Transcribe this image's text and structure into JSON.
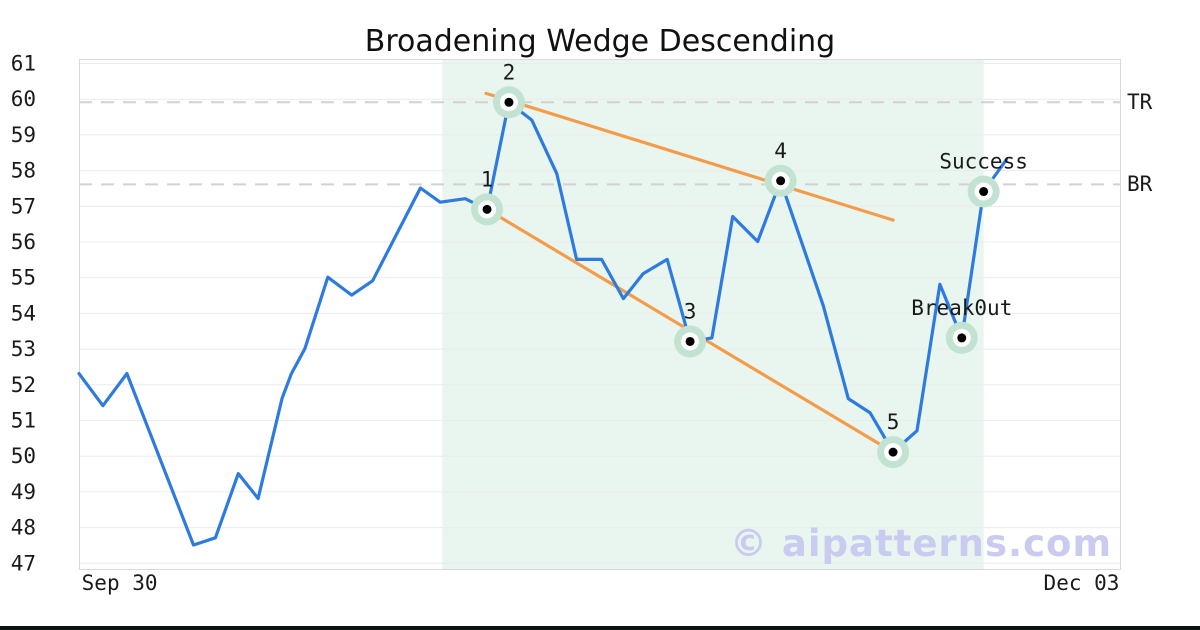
{
  "title": "Broadening Wedge Descending",
  "watermark": "© aipatterns.com",
  "colors": {
    "price_line": "#2e7bdf",
    "trendline": "#f59c4a",
    "pattern_shade": "#e9f5ef",
    "point_halo": "#c2e3d1",
    "point_dot": "#000000",
    "point_ring": "#ffffff",
    "dashed_level": "#d2d2d2",
    "gridline": "#ececec",
    "plot_border": "#d9d9d9",
    "tick_text": "#1a1a1a",
    "watermark_color": "#c9cbf1",
    "footer_bar": "#0c1412"
  },
  "chart_data": {
    "type": "line",
    "title": "Broadening Wedge Descending",
    "xlabel": "",
    "ylabel": "",
    "grid": "horizontal",
    "legend": "none",
    "ylim": [
      46.5,
      61.1
    ],
    "y_ticks": [
      61,
      60,
      59,
      58,
      57,
      56,
      55,
      54,
      53,
      52,
      51,
      50,
      49,
      48,
      47
    ],
    "x_ticks": [
      {
        "label": "Sep 30",
        "pos": 0.039
      },
      {
        "label": "Dec 03",
        "pos": 0.963
      }
    ],
    "levels": [
      {
        "label": "TR",
        "value": 59.9
      },
      {
        "label": "BR",
        "value": 57.6
      }
    ],
    "pattern_shade": {
      "from": 0.349,
      "to": 0.869
    },
    "series": [
      {
        "name": "price",
        "points": [
          [
            0.0,
            52.3
          ],
          [
            0.023,
            51.4
          ],
          [
            0.046,
            52.3
          ],
          [
            0.11,
            47.5
          ],
          [
            0.131,
            47.7
          ],
          [
            0.153,
            49.5
          ],
          [
            0.172,
            48.8
          ],
          [
            0.195,
            51.6
          ],
          [
            0.204,
            52.3
          ],
          [
            0.217,
            53.0
          ],
          [
            0.239,
            55.0
          ],
          [
            0.262,
            54.5
          ],
          [
            0.282,
            54.9
          ],
          [
            0.328,
            57.5
          ],
          [
            0.347,
            57.1
          ],
          [
            0.371,
            57.2
          ],
          [
            0.392,
            56.9
          ],
          [
            0.413,
            59.9
          ],
          [
            0.435,
            59.4
          ],
          [
            0.459,
            57.9
          ],
          [
            0.478,
            55.5
          ],
          [
            0.502,
            55.5
          ],
          [
            0.523,
            54.4
          ],
          [
            0.542,
            55.1
          ],
          [
            0.565,
            55.5
          ],
          [
            0.587,
            53.2
          ],
          [
            0.608,
            53.3
          ],
          [
            0.628,
            56.7
          ],
          [
            0.652,
            56.0
          ],
          [
            0.674,
            57.7
          ],
          [
            0.715,
            54.2
          ],
          [
            0.739,
            51.6
          ],
          [
            0.76,
            51.2
          ],
          [
            0.782,
            50.1
          ],
          [
            0.805,
            50.7
          ],
          [
            0.827,
            54.8
          ],
          [
            0.848,
            53.3
          ],
          [
            0.869,
            57.4
          ],
          [
            0.891,
            58.3
          ]
        ]
      }
    ],
    "trendlines": [
      {
        "name": "upper",
        "from": [
          0.391,
          60.15
        ],
        "to": [
          0.782,
          56.6
        ]
      },
      {
        "name": "lower",
        "from": [
          0.392,
          56.9
        ],
        "to": [
          0.782,
          50.1
        ]
      }
    ],
    "pattern_points": [
      {
        "label": "1",
        "x": 0.392,
        "y": 56.9
      },
      {
        "label": "2",
        "x": 0.413,
        "y": 59.9
      },
      {
        "label": "3",
        "x": 0.587,
        "y": 53.2
      },
      {
        "label": "4",
        "x": 0.674,
        "y": 57.7
      },
      {
        "label": "5",
        "x": 0.782,
        "y": 50.1
      },
      {
        "label": "Break0ut",
        "x": 0.848,
        "y": 53.3
      },
      {
        "label": "Success",
        "x": 0.869,
        "y": 57.4
      }
    ]
  }
}
